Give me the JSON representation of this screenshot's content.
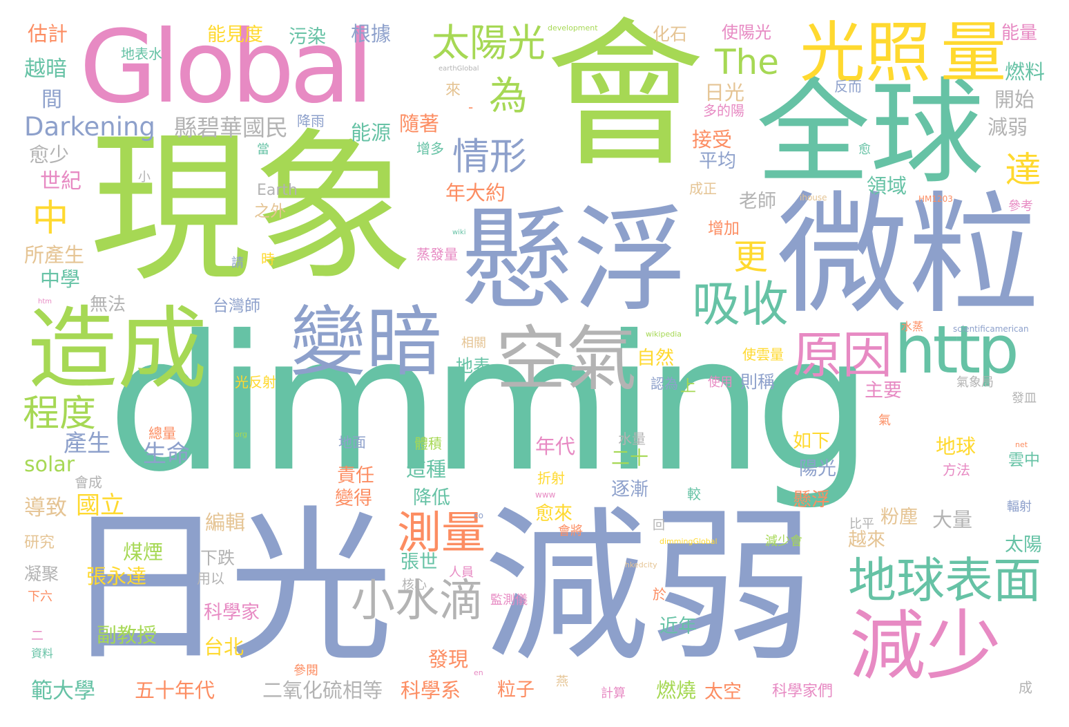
{
  "colors": {
    "green_light": "#a6d854",
    "teal": "#66c2a5",
    "blue_purple": "#8da0cb",
    "pink": "#e78ac3",
    "yellow": "#ffd92f",
    "orange": "#fc8d62",
    "tan": "#e5c494",
    "gray": "#b3b3b3"
  },
  "words": [
    {
      "text": "dimming",
      "color": "#66c2a5"
    },
    {
      "text": "會",
      "color": "#a6d854"
    },
    {
      "text": "現象",
      "color": "#a6d854"
    },
    {
      "text": "全球",
      "color": "#66c2a5"
    },
    {
      "text": "日光",
      "color": "#8da0cb"
    },
    {
      "text": "減弱",
      "color": "#8da0cb"
    },
    {
      "text": "懸浮",
      "color": "#8da0cb"
    },
    {
      "text": "微粒",
      "color": "#8da0cb"
    },
    {
      "text": "Global",
      "color": "#e78ac3"
    },
    {
      "text": "造成",
      "color": "#a6d854"
    },
    {
      "text": "變暗",
      "color": "#8da0cb"
    },
    {
      "text": "空氣",
      "color": "#b3b3b3"
    },
    {
      "text": "減少",
      "color": "#e78ac3"
    },
    {
      "text": "光照",
      "color": "#ffd92f"
    },
    {
      "text": "量",
      "color": "#ffd92f"
    },
    {
      "text": "http",
      "color": "#66c2a5"
    },
    {
      "text": "原因",
      "color": "#e78ac3"
    },
    {
      "text": "吸收",
      "color": "#66c2a5"
    },
    {
      "text": "地球表面",
      "color": "#66c2a5"
    },
    {
      "text": "測量",
      "color": "#fc8d62"
    },
    {
      "text": "小水滴",
      "color": "#b3b3b3"
    },
    {
      "text": "太陽光",
      "color": "#a6d854"
    },
    {
      "text": "情形",
      "color": "#8da0cb"
    },
    {
      "text": "The",
      "color": "#a6d854"
    },
    {
      "text": "為",
      "color": "#a6d854"
    },
    {
      "text": "Darkening",
      "color": "#8da0cb"
    },
    {
      "text": "縣碧華國民",
      "color": "#b3b3b3"
    },
    {
      "text": "程度",
      "color": "#a6d854"
    },
    {
      "text": "中",
      "color": "#ffd92f"
    },
    {
      "text": "更",
      "color": "#ffd92f"
    },
    {
      "text": "達",
      "color": "#ffd92f"
    },
    {
      "text": "Earth",
      "color": "#b3b3b3"
    },
    {
      "text": "solar",
      "color": "#a6d854"
    },
    {
      "text": "產生",
      "color": "#8da0cb"
    },
    {
      "text": "生命",
      "color": "#8da0cb"
    },
    {
      "text": "估計",
      "color": "#fc8d62"
    },
    {
      "text": "越暗",
      "color": "#66c2a5"
    },
    {
      "text": "間",
      "color": "#8da0cb"
    },
    {
      "text": "愈少",
      "color": "#b3b3b3"
    },
    {
      "text": "世紀",
      "color": "#e78ac3"
    },
    {
      "text": "所產生",
      "color": "#e5c494"
    },
    {
      "text": "中學",
      "color": "#66c2a5"
    },
    {
      "text": "無法",
      "color": "#b3b3b3"
    },
    {
      "text": "導致",
      "color": "#e5c494"
    },
    {
      "text": "研究",
      "color": "#e5c494"
    },
    {
      "text": "凝聚",
      "color": "#b3b3b3"
    },
    {
      "text": "下六",
      "color": "#fc8d62"
    },
    {
      "text": "資料",
      "color": "#66c2a5"
    },
    {
      "text": "範大學",
      "color": "#66c2a5"
    },
    {
      "text": "能見度",
      "color": "#ffd92f"
    },
    {
      "text": "污染",
      "color": "#66c2a5"
    },
    {
      "text": "根據",
      "color": "#8da0cb"
    },
    {
      "text": "地表水",
      "color": "#66c2a5"
    },
    {
      "text": "降雨",
      "color": "#8da0cb"
    },
    {
      "text": "能源",
      "color": "#66c2a5"
    },
    {
      "text": "隨著",
      "color": "#fc8d62"
    },
    {
      "text": "年大約",
      "color": "#fc8d62"
    },
    {
      "text": "之外",
      "color": "#e5c494"
    },
    {
      "text": "台灣師",
      "color": "#8da0cb"
    },
    {
      "text": "國立",
      "color": "#ffd92f"
    },
    {
      "text": "編輯",
      "color": "#e5c494"
    },
    {
      "text": "煤煙",
      "color": "#a6d854"
    },
    {
      "text": "張永達",
      "color": "#ffd92f"
    },
    {
      "text": "下跌",
      "color": "#b3b3b3"
    },
    {
      "text": "用以",
      "color": "#b3b3b3"
    },
    {
      "text": "科學家",
      "color": "#e78ac3"
    },
    {
      "text": "台北",
      "color": "#ffd92f"
    },
    {
      "text": "副教授",
      "color": "#a6d854"
    },
    {
      "text": "五十年代",
      "color": "#fc8d62"
    },
    {
      "text": "二氧化硫相等",
      "color": "#b3b3b3"
    },
    {
      "text": "科學系",
      "color": "#fc8d62"
    },
    {
      "text": "發現",
      "color": "#fc8d62"
    },
    {
      "text": "粒子",
      "color": "#fc8d62"
    },
    {
      "text": "燃燒",
      "color": "#a6d854"
    },
    {
      "text": "太空",
      "color": "#fc8d62"
    },
    {
      "text": "科學家們",
      "color": "#e78ac3"
    },
    {
      "text": "成",
      "color": "#b3b3b3"
    },
    {
      "text": "化石",
      "color": "#e5c494"
    },
    {
      "text": "使陽光",
      "color": "#e78ac3"
    },
    {
      "text": "能量",
      "color": "#e78ac3"
    },
    {
      "text": "燃料",
      "color": "#66c2a5"
    },
    {
      "text": "開始",
      "color": "#b3b3b3"
    },
    {
      "text": "減弱",
      "color": "#b3b3b3"
    },
    {
      "text": "日光",
      "color": "#e5c494"
    },
    {
      "text": "接受",
      "color": "#fc8d62"
    },
    {
      "text": "平均",
      "color": "#8da0cb"
    },
    {
      "text": "領域",
      "color": "#66c2a5"
    },
    {
      "text": "老師",
      "color": "#b3b3b3"
    },
    {
      "text": "反而",
      "color": "#8da0cb"
    },
    {
      "text": "多的陽",
      "color": "#e78ac3"
    },
    {
      "text": "增多",
      "color": "#66c2a5"
    },
    {
      "text": "成正",
      "color": "#e5c494"
    },
    {
      "text": "增加",
      "color": "#fc8d62"
    },
    {
      "text": "蒸發量",
      "color": "#e78ac3"
    },
    {
      "text": "自然",
      "color": "#ffd92f"
    },
    {
      "text": "則稱",
      "color": "#8da0cb"
    },
    {
      "text": "主要",
      "color": "#e78ac3"
    },
    {
      "text": "如下",
      "color": "#ffd92f"
    },
    {
      "text": "陽光",
      "color": "#8da0cb"
    },
    {
      "text": "地球",
      "color": "#ffd92f"
    },
    {
      "text": "粉塵",
      "color": "#e5c494"
    },
    {
      "text": "大量",
      "color": "#b3b3b3"
    },
    {
      "text": "越來",
      "color": "#e5c494"
    },
    {
      "text": "太陽",
      "color": "#66c2a5"
    },
    {
      "text": "懸浮",
      "color": "#fc8d62"
    },
    {
      "text": "地表",
      "color": "#66c2a5"
    },
    {
      "text": "使雲量",
      "color": "#ffd92f"
    },
    {
      "text": "認為",
      "color": "#8da0cb"
    },
    {
      "text": "使用",
      "color": "#e78ac3"
    },
    {
      "text": "上",
      "color": "#a6d854"
    },
    {
      "text": "年代",
      "color": "#e78ac3"
    },
    {
      "text": "二十",
      "color": "#a6d854"
    },
    {
      "text": "逐漸",
      "color": "#8da0cb"
    },
    {
      "text": "責任",
      "color": "#fc8d62"
    },
    {
      "text": "變得",
      "color": "#fc8d62"
    },
    {
      "text": "這種",
      "color": "#66c2a5"
    },
    {
      "text": "降低",
      "color": "#66c2a5"
    },
    {
      "text": "愈來",
      "color": "#ffd92f"
    },
    {
      "text": "張世",
      "color": "#66c2a5"
    },
    {
      "text": "近年",
      "color": "#66c2a5"
    },
    {
      "text": "水量",
      "color": "#b3b3b3"
    },
    {
      "text": "地面",
      "color": "#8da0cb"
    },
    {
      "text": "體積",
      "color": "#a6d854"
    },
    {
      "text": "相關",
      "color": "#e5c494"
    },
    {
      "text": "折射",
      "color": "#ffd92f"
    },
    {
      "text": "光反射",
      "color": "#ffd92f"
    },
    {
      "text": "總量",
      "color": "#fc8d62"
    },
    {
      "text": "會成",
      "color": "#b3b3b3"
    },
    {
      "text": "會將",
      "color": "#fc8d62"
    },
    {
      "text": "減少會",
      "color": "#a6d854"
    },
    {
      "text": "比平",
      "color": "#b3b3b3"
    },
    {
      "text": "雲中",
      "color": "#66c2a5"
    },
    {
      "text": "方法",
      "color": "#e78ac3"
    },
    {
      "text": "輻射",
      "color": "#8da0cb"
    },
    {
      "text": "發皿",
      "color": "#b3b3b3"
    },
    {
      "text": "氣象局",
      "color": "#b3b3b3"
    },
    {
      "text": "參考",
      "color": "#e78ac3"
    },
    {
      "text": "較",
      "color": "#66c2a5"
    },
    {
      "text": "回",
      "color": "#b3b3b3"
    },
    {
      "text": "於",
      "color": "#fc8d62"
    },
    {
      "text": "人員",
      "color": "#e78ac3"
    },
    {
      "text": "核心",
      "color": "#b3b3b3"
    },
    {
      "text": "監測儀",
      "color": "#e78ac3"
    },
    {
      "text": "參閱",
      "color": "#fc8d62"
    },
    {
      "text": "計算",
      "color": "#e78ac3"
    },
    {
      "text": "燕",
      "color": "#e5c494"
    },
    {
      "text": "二",
      "color": "#e78ac3"
    },
    {
      "text": "當",
      "color": "#66c2a5"
    },
    {
      "text": "小",
      "color": "#b3b3b3"
    },
    {
      "text": "時",
      "color": "#ffd92f"
    },
    {
      "text": "請",
      "color": "#8da0cb"
    },
    {
      "text": "來",
      "color": "#e5c494"
    },
    {
      "text": "愈",
      "color": "#66c2a5"
    },
    {
      "text": "氣",
      "color": "#fc8d62"
    },
    {
      "text": "水蒸",
      "color": "#fc8d62"
    },
    {
      "text": "development",
      "color": "#a6d854"
    },
    {
      "text": "earthGlobal",
      "color": "#b3b3b3"
    },
    {
      "text": "ihouse",
      "color": "#e5c494"
    },
    {
      "text": "HM1203",
      "color": "#fc8d62"
    },
    {
      "text": "wiki",
      "color": "#66c2a5"
    },
    {
      "text": "htm",
      "color": "#e78ac3"
    },
    {
      "text": "wikipedia",
      "color": "#a6d854"
    },
    {
      "text": "scientificamerican",
      "color": "#8da0cb"
    },
    {
      "text": "org",
      "color": "#a6d854"
    },
    {
      "text": "www",
      "color": "#e78ac3"
    },
    {
      "text": "co",
      "color": "#8da0cb"
    },
    {
      "text": "dimmingGlobal",
      "color": "#ffd92f"
    },
    {
      "text": "hkedcity",
      "color": "#e5c494"
    },
    {
      "text": "net",
      "color": "#fc8d62"
    },
    {
      "text": "en",
      "color": "#e78ac3"
    },
    {
      "text": "-",
      "color": "#fc8d62"
    }
  ]
}
